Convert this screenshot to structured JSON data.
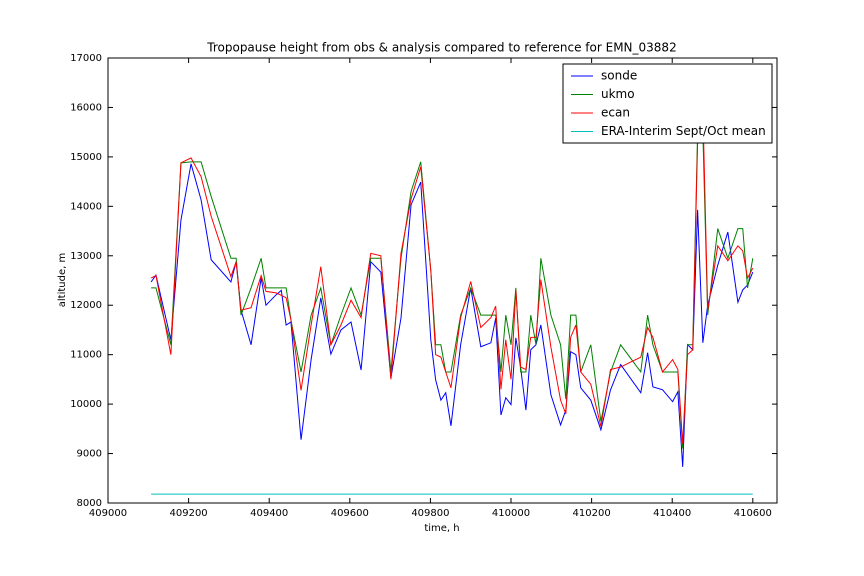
{
  "chart_data": {
    "type": "line",
    "title": "Tropopause height from obs & analysis compared to reference for EMN_03882",
    "xlabel": "time, h",
    "ylabel": "altitude, m",
    "x": [
      409107,
      409119,
      409156,
      409181,
      409206,
      409231,
      409256,
      409305,
      409318,
      409330,
      409355,
      409380,
      409392,
      409417,
      409430,
      409442,
      409454,
      409479,
      409504,
      409528,
      409553,
      409578,
      409603,
      409628,
      409652,
      409677,
      409702,
      409727,
      409752,
      409776,
      409801,
      409813,
      409826,
      409838,
      409851,
      409875,
      409900,
      409925,
      409950,
      409962,
      409975,
      409987,
      410000,
      410012,
      410024,
      410037,
      410049,
      410062,
      410074,
      410099,
      410123,
      410136,
      410148,
      410161,
      410173,
      410198,
      410223,
      410247,
      410272,
      410322,
      410339,
      410352,
      410376,
      410401,
      410414,
      410426,
      410438,
      410451,
      410463,
      410476,
      410488,
      410513,
      410538,
      410563,
      410575,
      410587,
      410600
    ],
    "series": [
      {
        "name": "sonde",
        "color": "#0000ff",
        "values": [
          12470,
          12610,
          11300,
          13720,
          14860,
          14130,
          12920,
          12470,
          12880,
          11900,
          11200,
          12550,
          12000,
          12210,
          12300,
          11600,
          11660,
          9280,
          10900,
          12150,
          11010,
          11500,
          11660,
          10690,
          12880,
          12670,
          10530,
          11740,
          14030,
          14490,
          11300,
          10490,
          10080,
          10230,
          9560,
          11200,
          12350,
          11160,
          11240,
          11740,
          9780,
          10130,
          9990,
          11340,
          10730,
          9880,
          11100,
          11200,
          11600,
          10190,
          9580,
          9880,
          11060,
          11000,
          10330,
          10080,
          9480,
          10290,
          10800,
          10230,
          11040,
          10350,
          10290,
          10050,
          10250,
          8730,
          11200,
          11100,
          13930,
          11240,
          12000,
          12810,
          13480,
          12060,
          12310,
          12410,
          12670
        ]
      },
      {
        "name": "ukmo",
        "color": "#008000",
        "values": [
          12350,
          12350,
          11200,
          14880,
          14900,
          14900,
          14200,
          12950,
          12950,
          11800,
          12350,
          12950,
          12350,
          12350,
          12350,
          12350,
          11700,
          10650,
          11800,
          12350,
          11200,
          11800,
          12350,
          11800,
          12950,
          12950,
          10650,
          12950,
          14300,
          14900,
          12700,
          11200,
          11200,
          10650,
          10650,
          11800,
          12350,
          11800,
          11800,
          11800,
          10650,
          11800,
          11200,
          12350,
          10650,
          10650,
          11800,
          11200,
          12950,
          11800,
          11200,
          10100,
          11800,
          11800,
          10650,
          11200,
          9650,
          10650,
          11200,
          10650,
          11800,
          11200,
          10650,
          10650,
          10650,
          9100,
          11200,
          11200,
          15500,
          15500,
          11800,
          13550,
          12950,
          13550,
          13550,
          12350,
          12950
        ]
      },
      {
        "name": "ecan",
        "color": "#ff0000",
        "values": [
          12550,
          12600,
          11000,
          14880,
          14980,
          14600,
          13800,
          12580,
          12880,
          11900,
          11950,
          12600,
          12280,
          12250,
          12200,
          12150,
          11700,
          10280,
          11600,
          12780,
          11200,
          11600,
          12100,
          11750,
          13050,
          13000,
          10500,
          13050,
          14150,
          14800,
          12700,
          11000,
          10950,
          10650,
          10330,
          11750,
          12480,
          11550,
          11750,
          11980,
          10300,
          11300,
          10500,
          12300,
          10750,
          10700,
          11350,
          11350,
          12520,
          11150,
          10080,
          9800,
          11350,
          11600,
          10650,
          10400,
          9550,
          10700,
          10750,
          10950,
          11550,
          11350,
          10650,
          10900,
          10700,
          9200,
          11000,
          11100,
          15300,
          16000,
          11900,
          13200,
          12900,
          13200,
          13100,
          12550,
          12750
        ]
      },
      {
        "name": "ERA-Interim Sept/Oct mean",
        "color": "#00bfbf",
        "x": [
          409107,
          410600
        ],
        "values": [
          8180,
          8180
        ]
      }
    ],
    "xlim": [
      409000,
      410660
    ],
    "xticks": [
      409000,
      409200,
      409400,
      409600,
      409800,
      410000,
      410200,
      410400,
      410600
    ],
    "ylim": [
      8000,
      17000
    ],
    "yticks": [
      8000,
      9000,
      10000,
      11000,
      12000,
      13000,
      14000,
      15000,
      16000,
      17000
    ],
    "legend": "upper right"
  }
}
